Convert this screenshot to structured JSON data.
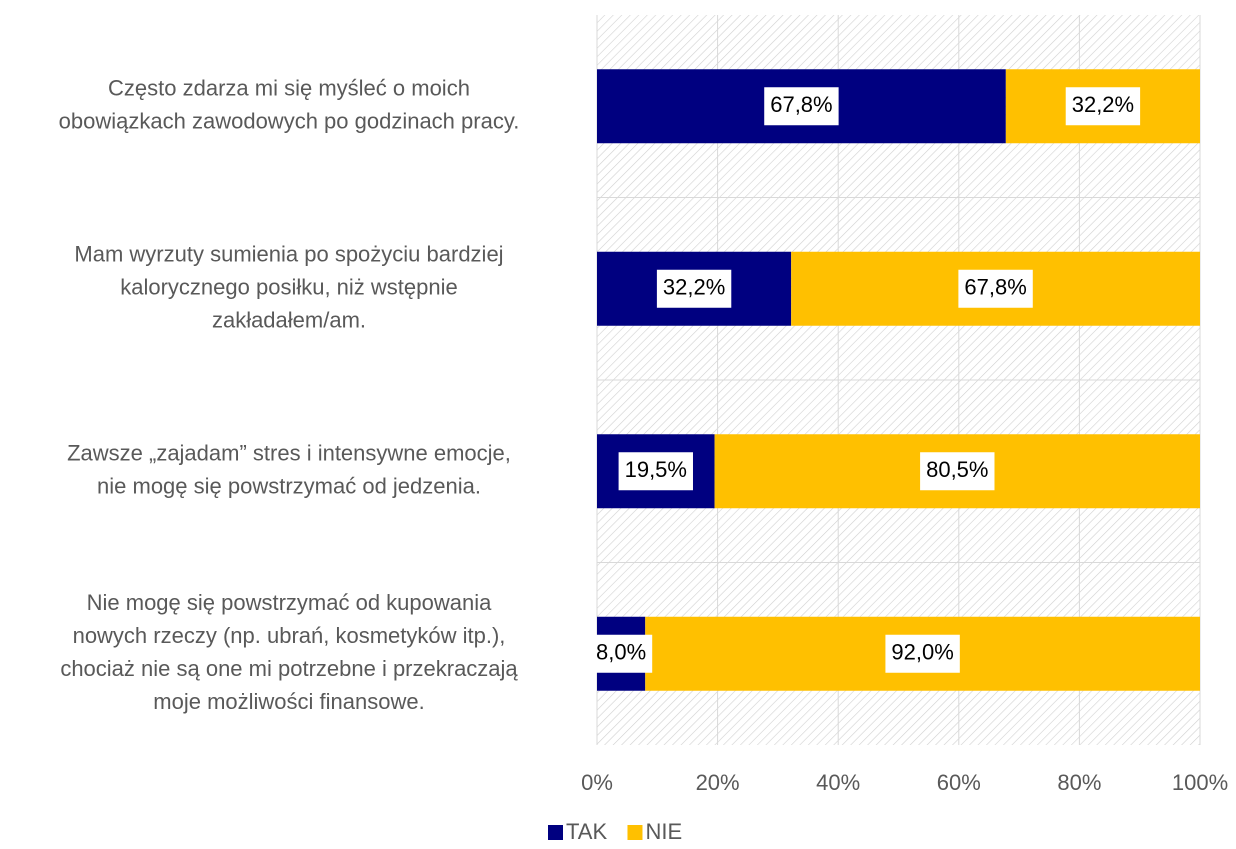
{
  "chart_data": {
    "type": "bar",
    "orientation": "horizontal",
    "stacked": true,
    "categories": [
      [
        "Często zdarza mi się myśleć o moich",
        "obowiązkach zawodowych po godzinach pracy."
      ],
      [
        "Mam wyrzuty sumienia po spożyciu bardziej",
        "kalorycznego posiłku, niż wstępnie",
        "zakładałem/am."
      ],
      [
        "Zawsze „zajadam” stres i intensywne emocje,",
        "nie mogę się powstrzymać od jedzenia."
      ],
      [
        "Nie mogę się powstrzymać od kupowania",
        "nowych rzeczy (np. ubrań, kosmetyków itp.),",
        "chociaż nie są one mi potrzebne i przekraczają",
        "moje możliwości finansowe."
      ]
    ],
    "series": [
      {
        "name": "TAK",
        "color": "#000080",
        "values": [
          67.8,
          32.2,
          19.5,
          8.0
        ],
        "value_labels": [
          "67,8%",
          "32,2%",
          "19,5%",
          "8,0%"
        ]
      },
      {
        "name": "NIE",
        "color": "#FFC000",
        "values": [
          32.2,
          67.8,
          80.5,
          92.0
        ],
        "value_labels": [
          "32,2%",
          "67,8%",
          "80,5%",
          "92,0%"
        ]
      }
    ],
    "xlim": [
      0,
      100
    ],
    "xticks": [
      {
        "value": 0,
        "label": "0%"
      },
      {
        "value": 20,
        "label": "20%"
      },
      {
        "value": 40,
        "label": "40%"
      },
      {
        "value": 60,
        "label": "60%"
      },
      {
        "value": 80,
        "label": "80%"
      },
      {
        "value": 100,
        "label": "100%"
      }
    ],
    "grid": true,
    "legend": "bottom"
  }
}
